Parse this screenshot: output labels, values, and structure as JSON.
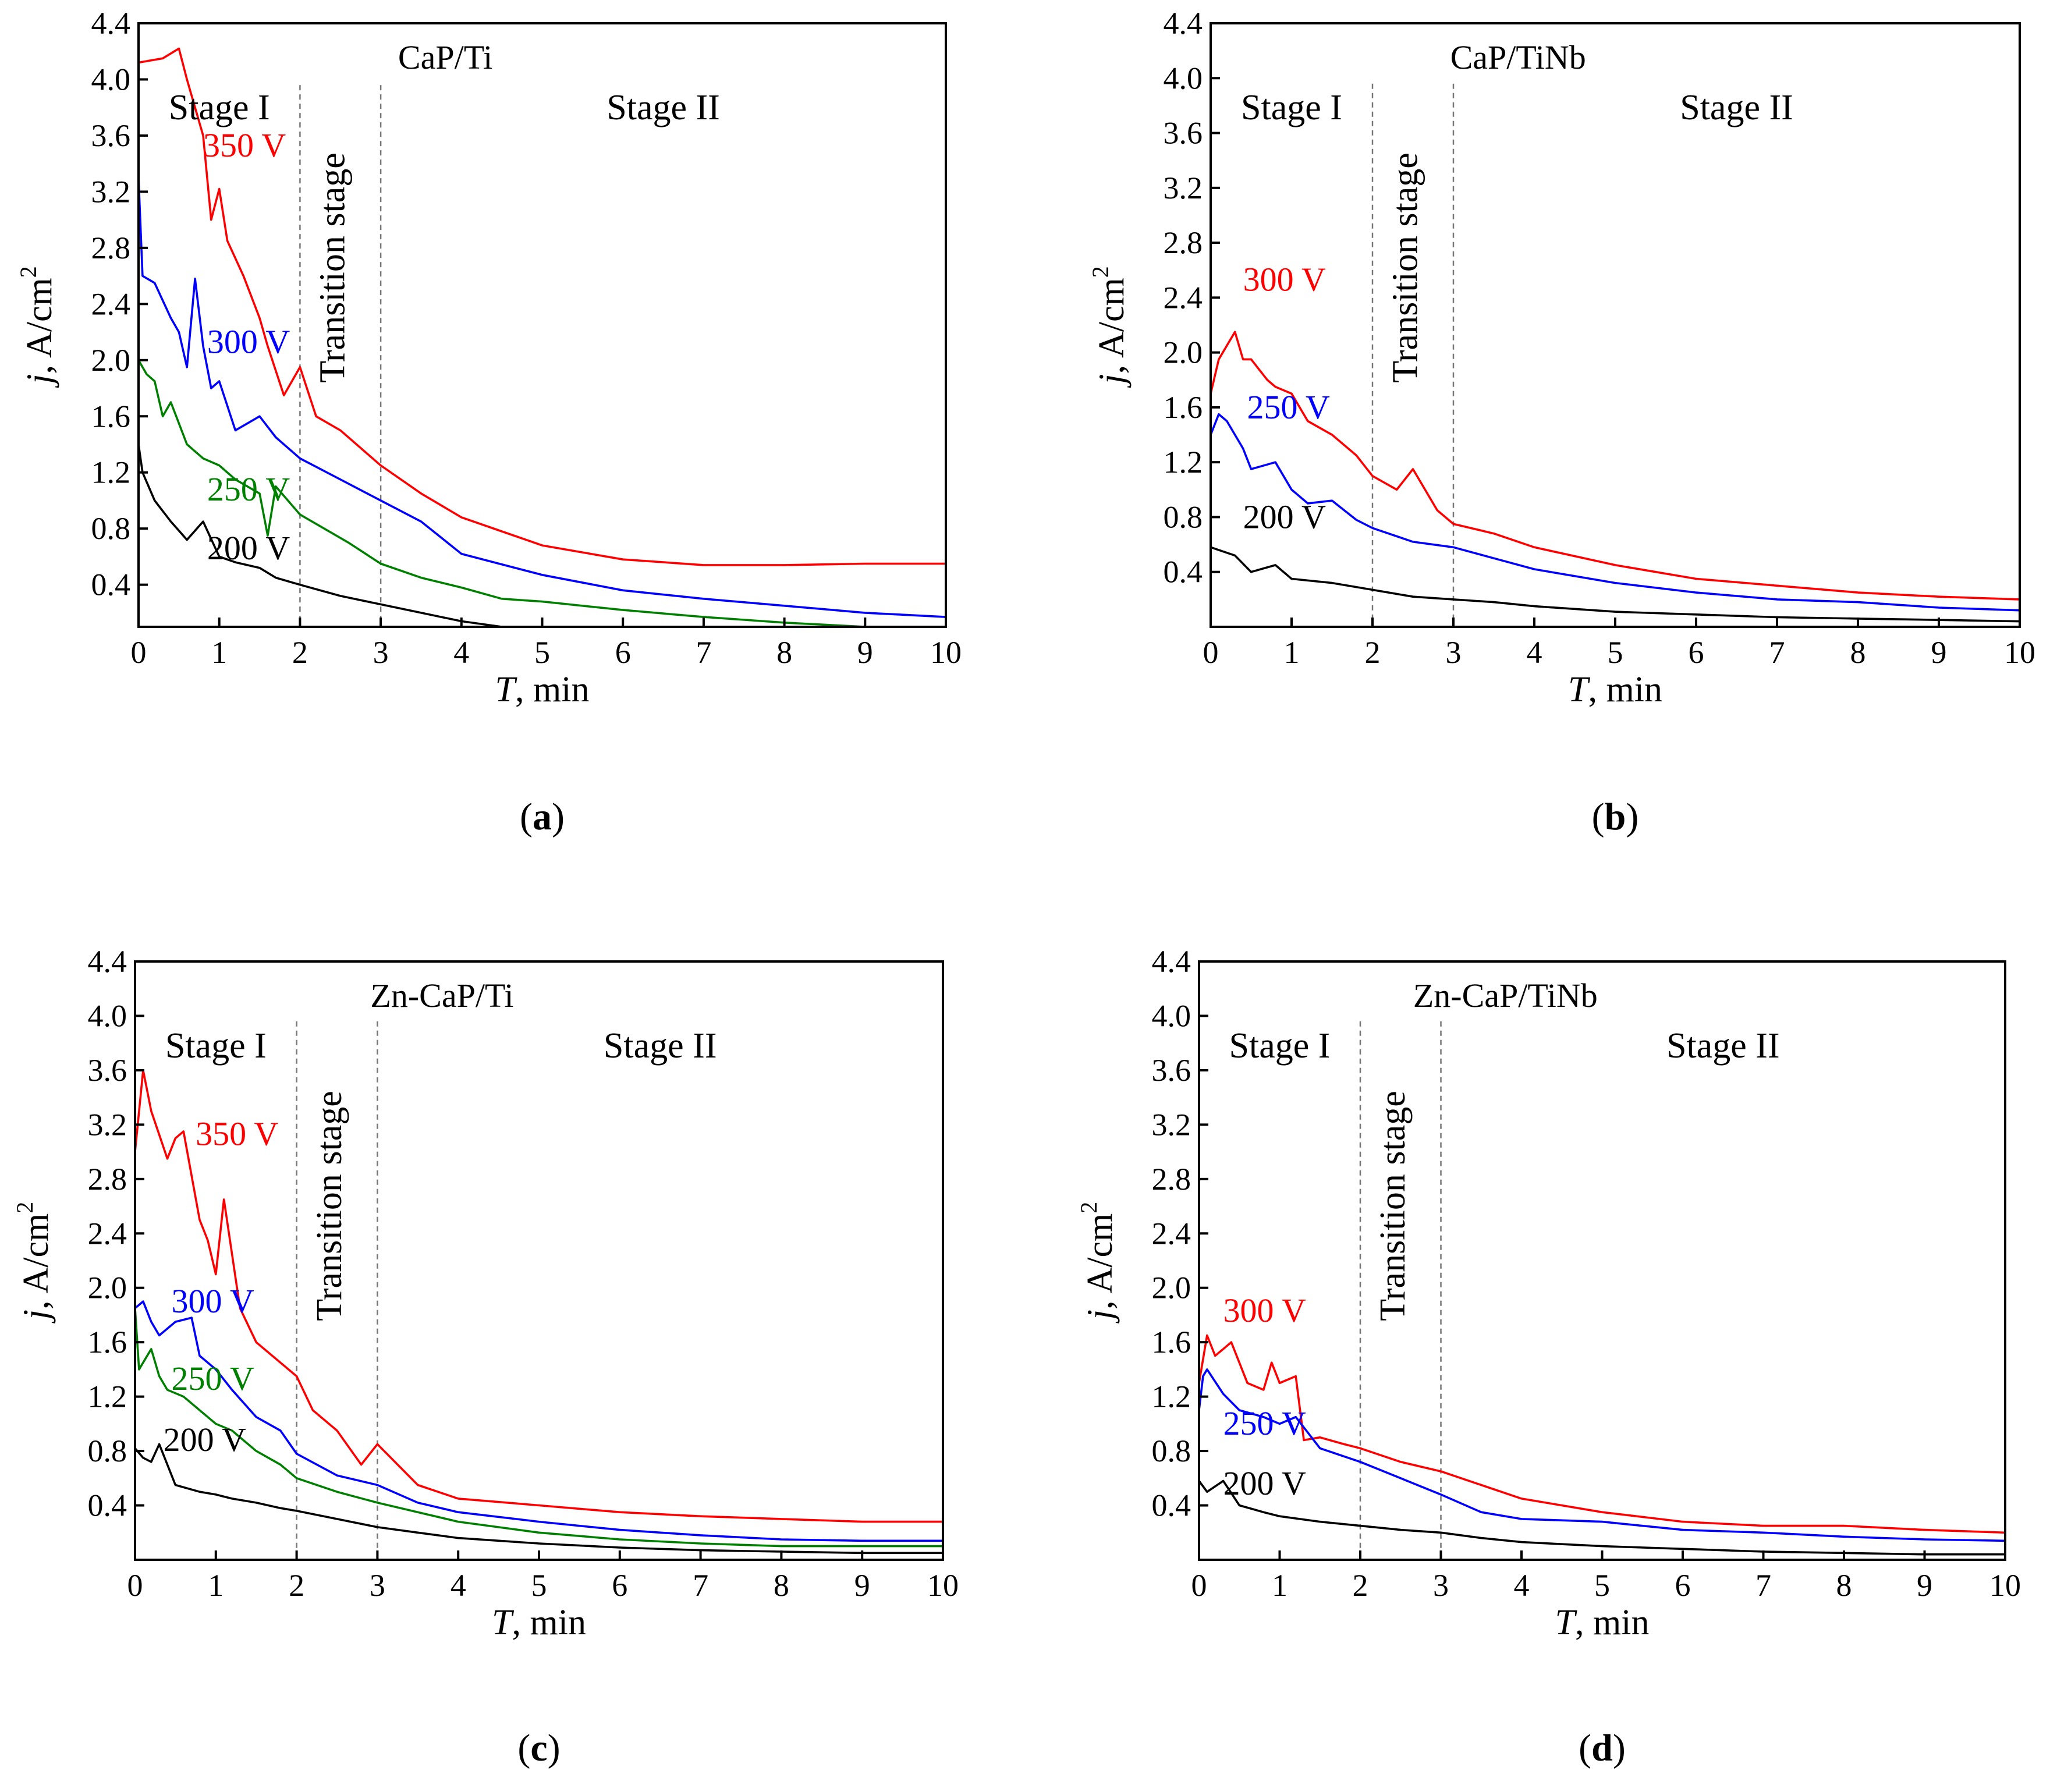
{
  "figure": {
    "colors": {
      "red": "#ff0000",
      "blue": "#0000ff",
      "green": "#008000",
      "black": "#000000"
    },
    "axis_text": {
      "x_label_italic": "T",
      "x_label_rest": ", min",
      "y_label_italic": "j",
      "y_label_rest": ", A/cm",
      "y_label_sup": "2"
    }
  },
  "chart_data": [
    {
      "panel": "(a)",
      "panel_letter": "a",
      "title": "CaP/Ti",
      "type": "line",
      "xlabel": "T, min",
      "ylabel": "j, A/cm2",
      "xlim": [
        0,
        10
      ],
      "ylim": [
        0.1,
        4.4
      ],
      "xticks": [
        "0",
        "1",
        "2",
        "3",
        "4",
        "5",
        "6",
        "7",
        "8",
        "9",
        "10"
      ],
      "yticks": [
        "0.4",
        "0.8",
        "1.2",
        "1.6",
        "2.0",
        "2.4",
        "2.8",
        "3.2",
        "3.6",
        "4.0",
        "4.4"
      ],
      "stage_dividers_x": [
        2,
        3
      ],
      "stage_labels": {
        "stage1": "Stage I",
        "transition": "Transition stage",
        "stage2": "Stage II"
      },
      "series": [
        {
          "name": "350 V",
          "color": "#ff0000",
          "x": [
            0,
            0.3,
            0.5,
            0.6,
            0.8,
            0.9,
            1,
            1.1,
            1.3,
            1.5,
            1.6,
            1.8,
            2,
            2.2,
            2.5,
            3,
            3.5,
            4,
            5,
            6,
            7,
            8,
            9,
            10
          ],
          "y": [
            4.12,
            4.15,
            4.22,
            4.0,
            3.6,
            3.0,
            3.22,
            2.85,
            2.6,
            2.3,
            2.1,
            1.75,
            1.95,
            1.6,
            1.5,
            1.25,
            1.05,
            0.88,
            0.68,
            0.58,
            0.54,
            0.54,
            0.55,
            0.55
          ]
        },
        {
          "name": "300 V",
          "color": "#0000ff",
          "x": [
            0,
            0.05,
            0.2,
            0.4,
            0.5,
            0.6,
            0.7,
            0.8,
            0.9,
            1,
            1.2,
            1.5,
            1.7,
            2,
            2.5,
            3,
            3.5,
            4,
            5,
            6,
            7,
            8,
            9,
            10
          ],
          "y": [
            3.3,
            2.6,
            2.55,
            2.3,
            2.2,
            1.95,
            2.58,
            2.1,
            1.8,
            1.85,
            1.5,
            1.6,
            1.45,
            1.3,
            1.15,
            1.0,
            0.85,
            0.62,
            0.47,
            0.36,
            0.3,
            0.25,
            0.2,
            0.17
          ]
        },
        {
          "name": "250 V",
          "color": "#008000",
          "x": [
            0,
            0.1,
            0.2,
            0.3,
            0.4,
            0.6,
            0.8,
            1,
            1.2,
            1.5,
            1.6,
            1.7,
            2,
            2.3,
            2.6,
            3,
            3.5,
            4,
            4.5,
            5,
            6,
            7,
            8,
            9,
            10
          ],
          "y": [
            2.0,
            1.9,
            1.85,
            1.6,
            1.7,
            1.4,
            1.3,
            1.25,
            1.15,
            1.05,
            0.75,
            1.1,
            0.9,
            0.8,
            0.7,
            0.55,
            0.45,
            0.38,
            0.3,
            0.28,
            0.22,
            0.17,
            0.13,
            0.1,
            0.1
          ]
        },
        {
          "name": "200 V",
          "color": "#000000",
          "x": [
            0,
            0.05,
            0.2,
            0.4,
            0.6,
            0.8,
            1,
            1.2,
            1.5,
            1.7,
            2,
            2.5,
            3,
            3.5,
            4,
            4.5
          ],
          "y": [
            1.4,
            1.2,
            1.0,
            0.85,
            0.72,
            0.85,
            0.6,
            0.56,
            0.52,
            0.45,
            0.4,
            0.32,
            0.26,
            0.2,
            0.14,
            0.1
          ]
        }
      ]
    },
    {
      "panel": "(b)",
      "panel_letter": "b",
      "title": "CaP/TiNb",
      "type": "line",
      "xlabel": "T, min",
      "ylabel": "j, A/cm2",
      "xlim": [
        0,
        10
      ],
      "ylim": [
        0.0,
        4.4
      ],
      "xticks": [
        "0",
        "1",
        "2",
        "3",
        "4",
        "5",
        "6",
        "7",
        "8",
        "9",
        "10"
      ],
      "yticks": [
        "0.4",
        "0.8",
        "1.2",
        "1.6",
        "2.0",
        "2.4",
        "2.8",
        "3.2",
        "3.6",
        "4.0",
        "4.4"
      ],
      "stage_dividers_x": [
        2,
        3
      ],
      "stage_labels": {
        "stage1": "Stage I",
        "transition": "Transition stage",
        "stage2": "Stage II"
      },
      "series": [
        {
          "name": "300 V",
          "color": "#ff0000",
          "x": [
            0,
            0.1,
            0.3,
            0.4,
            0.5,
            0.7,
            0.8,
            1,
            1.2,
            1.5,
            1.8,
            2,
            2.3,
            2.5,
            2.8,
            3,
            3.5,
            4,
            5,
            6,
            7,
            8,
            9,
            10
          ],
          "y": [
            1.7,
            1.95,
            2.15,
            1.95,
            1.95,
            1.8,
            1.75,
            1.7,
            1.5,
            1.4,
            1.25,
            1.1,
            1.0,
            1.15,
            0.85,
            0.75,
            0.68,
            0.58,
            0.45,
            0.35,
            0.3,
            0.25,
            0.22,
            0.2
          ]
        },
        {
          "name": "250 V",
          "color": "#0000ff",
          "x": [
            0,
            0.1,
            0.2,
            0.4,
            0.5,
            0.8,
            1,
            1.2,
            1.5,
            1.8,
            2,
            2.5,
            3,
            3.5,
            4,
            5,
            6,
            7,
            8,
            9,
            10
          ],
          "y": [
            1.4,
            1.55,
            1.5,
            1.3,
            1.15,
            1.2,
            1.0,
            0.9,
            0.92,
            0.78,
            0.72,
            0.62,
            0.58,
            0.5,
            0.42,
            0.32,
            0.25,
            0.2,
            0.18,
            0.14,
            0.12
          ]
        },
        {
          "name": "200 V",
          "color": "#000000",
          "x": [
            0,
            0.3,
            0.5,
            0.8,
            1,
            1.5,
            2,
            2.5,
            3,
            3.5,
            4,
            5,
            6,
            7,
            8,
            9,
            10
          ],
          "y": [
            0.58,
            0.52,
            0.4,
            0.45,
            0.35,
            0.32,
            0.27,
            0.22,
            0.2,
            0.18,
            0.15,
            0.11,
            0.09,
            0.07,
            0.06,
            0.05,
            0.04
          ]
        }
      ]
    },
    {
      "panel": "(c)",
      "panel_letter": "c",
      "title": "Zn-CaP/Ti",
      "type": "line",
      "xlabel": "T, min",
      "ylabel": "j, A/cm2",
      "xlim": [
        0,
        10
      ],
      "ylim": [
        0.0,
        4.4
      ],
      "xticks": [
        "0",
        "1",
        "2",
        "3",
        "4",
        "5",
        "6",
        "7",
        "8",
        "9",
        "10"
      ],
      "yticks": [
        "0.4",
        "0.8",
        "1.2",
        "1.6",
        "2.0",
        "2.4",
        "2.8",
        "3.2",
        "3.6",
        "4.0",
        "4.4"
      ],
      "stage_dividers_x": [
        2,
        3
      ],
      "stage_labels": {
        "stage1": "Stage I",
        "transition": "Transition stage",
        "stage2": "Stage II"
      },
      "series": [
        {
          "name": "350 V",
          "color": "#ff0000",
          "x": [
            0,
            0.1,
            0.2,
            0.4,
            0.5,
            0.6,
            0.8,
            0.9,
            1,
            1.1,
            1.3,
            1.5,
            1.8,
            2,
            2.2,
            2.5,
            2.8,
            3,
            3.5,
            4,
            5,
            6,
            7,
            8,
            9,
            10
          ],
          "y": [
            3.0,
            3.6,
            3.3,
            2.95,
            3.1,
            3.15,
            2.5,
            2.35,
            2.1,
            2.65,
            1.85,
            1.6,
            1.45,
            1.35,
            1.1,
            0.95,
            0.7,
            0.85,
            0.55,
            0.45,
            0.4,
            0.35,
            0.32,
            0.3,
            0.28,
            0.28
          ]
        },
        {
          "name": "300 V",
          "color": "#0000ff",
          "x": [
            0,
            0.1,
            0.2,
            0.3,
            0.5,
            0.7,
            0.8,
            1,
            1.2,
            1.5,
            1.8,
            2,
            2.5,
            3,
            3.5,
            4,
            5,
            6,
            7,
            8,
            9,
            10
          ],
          "y": [
            1.85,
            1.9,
            1.75,
            1.65,
            1.75,
            1.78,
            1.5,
            1.4,
            1.25,
            1.05,
            0.95,
            0.78,
            0.62,
            0.55,
            0.42,
            0.35,
            0.28,
            0.22,
            0.18,
            0.15,
            0.14,
            0.14
          ]
        },
        {
          "name": "250 V",
          "color": "#008000",
          "x": [
            0,
            0.05,
            0.2,
            0.3,
            0.4,
            0.6,
            0.8,
            1,
            1.2,
            1.5,
            1.8,
            2,
            2.5,
            3,
            3.5,
            4,
            5,
            6,
            7,
            8,
            9,
            10
          ],
          "y": [
            1.85,
            1.4,
            1.55,
            1.35,
            1.25,
            1.2,
            1.1,
            1.0,
            0.95,
            0.8,
            0.7,
            0.6,
            0.5,
            0.42,
            0.35,
            0.28,
            0.2,
            0.15,
            0.12,
            0.1,
            0.1,
            0.1
          ]
        },
        {
          "name": "200 V",
          "color": "#000000",
          "x": [
            0,
            0.1,
            0.2,
            0.3,
            0.5,
            0.8,
            1,
            1.2,
            1.5,
            1.8,
            2,
            2.5,
            3,
            3.5,
            4,
            5,
            6,
            7,
            8,
            9,
            10
          ],
          "y": [
            0.82,
            0.75,
            0.72,
            0.85,
            0.55,
            0.5,
            0.48,
            0.45,
            0.42,
            0.38,
            0.36,
            0.3,
            0.24,
            0.2,
            0.16,
            0.12,
            0.09,
            0.07,
            0.06,
            0.05,
            0.05
          ]
        }
      ]
    },
    {
      "panel": "(d)",
      "panel_letter": "d",
      "title": "Zn-CaP/TiNb",
      "type": "line",
      "xlabel": "T, min",
      "ylabel": "j, A/cm2",
      "xlim": [
        0,
        10
      ],
      "ylim": [
        0.0,
        4.4
      ],
      "xticks": [
        "0",
        "1",
        "2",
        "3",
        "4",
        "5",
        "6",
        "7",
        "8",
        "9",
        "10"
      ],
      "yticks": [
        "0.4",
        "0.8",
        "1.2",
        "1.6",
        "2.0",
        "2.4",
        "2.8",
        "3.2",
        "3.6",
        "4.0",
        "4.4"
      ],
      "stage_dividers_x": [
        2,
        3
      ],
      "stage_labels": {
        "stage1": "Stage I",
        "transition": "Transition stage",
        "stage2": "Stage II"
      },
      "series": [
        {
          "name": "300 V",
          "color": "#ff0000",
          "x": [
            0,
            0.1,
            0.2,
            0.3,
            0.4,
            0.6,
            0.8,
            0.9,
            1,
            1.2,
            1.3,
            1.5,
            1.8,
            2,
            2.5,
            3,
            3.5,
            4,
            5,
            6,
            7,
            8,
            9,
            10
          ],
          "y": [
            1.3,
            1.65,
            1.5,
            1.55,
            1.6,
            1.3,
            1.25,
            1.45,
            1.3,
            1.35,
            0.88,
            0.9,
            0.85,
            0.82,
            0.72,
            0.65,
            0.55,
            0.45,
            0.35,
            0.28,
            0.25,
            0.25,
            0.22,
            0.2
          ]
        },
        {
          "name": "250 V",
          "color": "#0000ff",
          "x": [
            0,
            0.05,
            0.1,
            0.3,
            0.5,
            0.8,
            1,
            1.2,
            1.5,
            2,
            2.5,
            3,
            3.5,
            4,
            5,
            6,
            7,
            8,
            9,
            10
          ],
          "y": [
            1.1,
            1.35,
            1.4,
            1.22,
            1.1,
            1.05,
            1.0,
            1.05,
            0.82,
            0.72,
            0.6,
            0.48,
            0.35,
            0.3,
            0.28,
            0.22,
            0.2,
            0.17,
            0.15,
            0.14
          ]
        },
        {
          "name": "200 V",
          "color": "#000000",
          "x": [
            0,
            0.1,
            0.3,
            0.5,
            0.8,
            1,
            1.5,
            2,
            2.5,
            3,
            3.5,
            4,
            5,
            6,
            7,
            8,
            9,
            10
          ],
          "y": [
            0.58,
            0.5,
            0.58,
            0.4,
            0.35,
            0.32,
            0.28,
            0.25,
            0.22,
            0.2,
            0.16,
            0.13,
            0.1,
            0.08,
            0.06,
            0.05,
            0.04,
            0.04
          ]
        }
      ]
    }
  ]
}
